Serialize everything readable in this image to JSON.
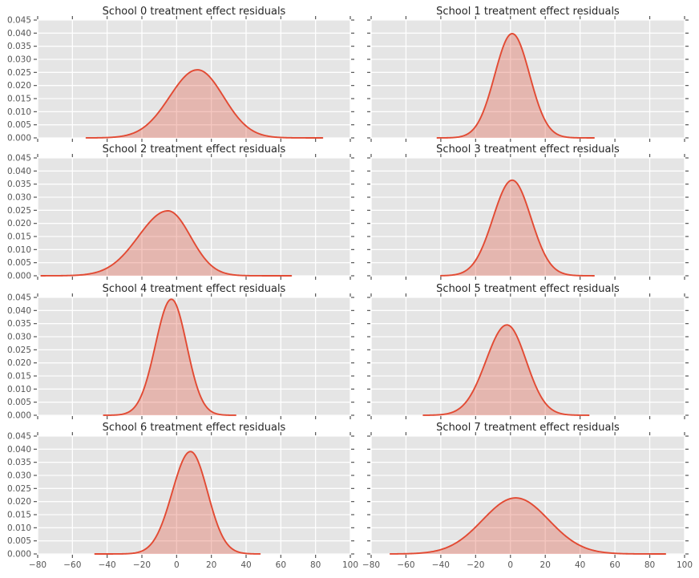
{
  "figure": {
    "background": "#ffffff",
    "panel_background": "#e5e5e5",
    "grid_color": "#fefefe",
    "line_color": "#e24a33",
    "fill_color": "rgba(226,74,51,0.30)",
    "tick_color": "#555555",
    "tick_label_color": "#555555",
    "title_color": "#262626"
  },
  "chart_data": {
    "type": "area",
    "style": "kde-density",
    "layout": {
      "rows": 4,
      "cols": 2,
      "grid": true,
      "legend": false
    },
    "xlim": [
      -80,
      100
    ],
    "ylim": [
      0,
      0.045
    ],
    "x_ticks": [
      -80,
      -60,
      -40,
      -20,
      0,
      20,
      40,
      60,
      80,
      100
    ],
    "x_tick_labels": [
      "−80",
      "−60",
      "−40",
      "−20",
      "0",
      "20",
      "40",
      "60",
      "80",
      "100"
    ],
    "y_ticks": [
      0,
      0.005,
      0.01,
      0.015,
      0.02,
      0.025,
      0.03,
      0.035,
      0.04,
      0.045
    ],
    "y_tick_labels": [
      "0.000",
      "0.005",
      "0.010",
      "0.015",
      "0.020",
      "0.025",
      "0.030",
      "0.035",
      "0.040",
      "0.045"
    ],
    "subplots": [
      {
        "title": "School 0 treatment effect residuals",
        "curve": {
          "peak_x": 12,
          "peak_density": 0.026,
          "sigma_left": 16,
          "sigma_right": 15,
          "x_range": [
            -52,
            84
          ]
        }
      },
      {
        "title": "School 1 treatment effect residuals",
        "curve": {
          "peak_x": 1,
          "peak_density": 0.0398,
          "sigma_left": 10,
          "sigma_right": 10,
          "x_range": [
            -42,
            48
          ]
        }
      },
      {
        "title": "School 2 treatment effect residuals",
        "curve": {
          "peak_x": -5,
          "peak_density": 0.0248,
          "sigma_left": 17,
          "sigma_right": 13,
          "x_range": [
            -78,
            66
          ]
        }
      },
      {
        "title": "School 3 treatment effect residuals",
        "curve": {
          "peak_x": 1,
          "peak_density": 0.0365,
          "sigma_left": 11,
          "sigma_right": 10.8,
          "x_range": [
            -40,
            48
          ]
        }
      },
      {
        "title": "School 4 treatment effect residuals",
        "curve": {
          "peak_x": -3,
          "peak_density": 0.0443,
          "sigma_left": 9.2,
          "sigma_right": 8.8,
          "x_range": [
            -42,
            34
          ]
        }
      },
      {
        "title": "School 5 treatment effect residuals",
        "curve": {
          "peak_x": -2,
          "peak_density": 0.0345,
          "sigma_left": 12,
          "sigma_right": 11,
          "x_range": [
            -50,
            45
          ]
        }
      },
      {
        "title": "School 6 treatment effect residuals",
        "curve": {
          "peak_x": 8,
          "peak_density": 0.0391,
          "sigma_left": 10.5,
          "sigma_right": 9.8,
          "x_range": [
            -47,
            48
          ]
        }
      },
      {
        "title": "School 7 treatment effect residuals",
        "curve": {
          "peak_x": 3,
          "peak_density": 0.0214,
          "sigma_left": 19,
          "sigma_right": 19,
          "x_range": [
            -69,
            89
          ]
        }
      }
    ]
  }
}
